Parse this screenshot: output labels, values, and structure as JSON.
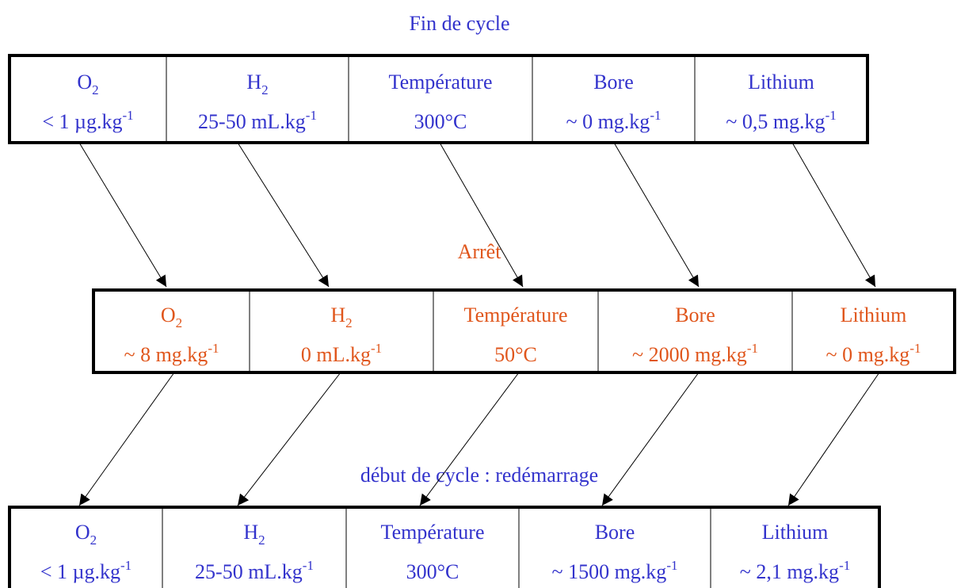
{
  "stages": [
    {
      "title": "Fin de cycle",
      "cells": [
        {
          "label": "O",
          "label_sub": "2",
          "value": "< 1 µg.kg",
          "value_sup": "-1"
        },
        {
          "label": "H",
          "label_sub": "2",
          "value": "25-50 mL.kg",
          "value_sup": "-1"
        },
        {
          "label": "Température",
          "value": "300°C"
        },
        {
          "label": "Bore",
          "value": "~ 0 mg.kg",
          "value_sup": "-1"
        },
        {
          "label": "Lithium",
          "value": "~ 0,5 mg.kg",
          "value_sup": "-1"
        }
      ]
    },
    {
      "title": "Arrêt",
      "cells": [
        {
          "label": "O",
          "label_sub": "2",
          "value": "~ 8 mg.kg",
          "value_sup": "-1"
        },
        {
          "label": "H",
          "label_sub": "2",
          "value": "0 mL.kg",
          "value_sup": "-1"
        },
        {
          "label": "Température",
          "value": "50°C"
        },
        {
          "label": "Bore",
          "value": "~ 2000 mg.kg",
          "value_sup": "-1"
        },
        {
          "label": "Lithium",
          "value": "~ 0 mg.kg",
          "value_sup": "-1"
        }
      ]
    },
    {
      "title": "début de cycle : redémarrage",
      "cells": [
        {
          "label": "O",
          "label_sub": "2",
          "value": "< 1 µg.kg",
          "value_sup": "-1"
        },
        {
          "label": "H",
          "label_sub": "2",
          "value": "25-50 mL.kg",
          "value_sup": "-1"
        },
        {
          "label": "Température",
          "value": "300°C"
        },
        {
          "label": "Bore",
          "value": "~ 1500 mg.kg",
          "value_sup": "-1"
        },
        {
          "label": "Lithium",
          "value": "~ 2,1 mg.kg",
          "value_sup": "-1"
        }
      ]
    }
  ]
}
